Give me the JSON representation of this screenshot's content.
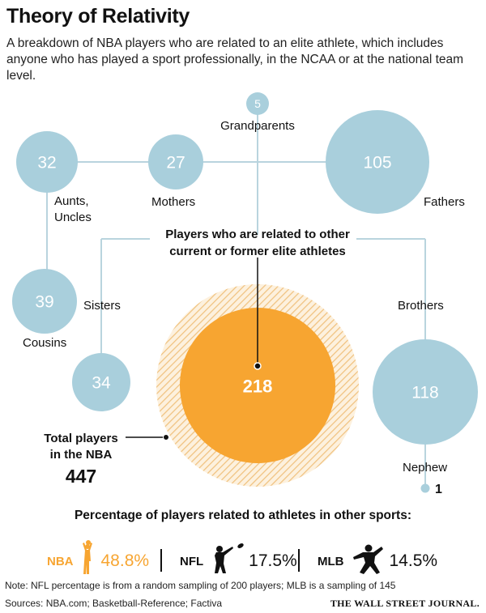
{
  "title": "Theory of Relativity",
  "subtitle": "A breakdown of NBA players who are related to an elite athlete, which includes anyone who has played a sport professionally, in the NCAA or at the national team level.",
  "chart_data": {
    "type": "bubble",
    "relations": [
      {
        "name": "Grandparents",
        "value": 5
      },
      {
        "name": "Aunts, Uncles",
        "value": 32
      },
      {
        "name": "Mothers",
        "value": 27
      },
      {
        "name": "Fathers",
        "value": 105
      },
      {
        "name": "Cousins",
        "value": 39
      },
      {
        "name": "Sisters",
        "value": 34
      },
      {
        "name": "Brothers",
        "value": 118
      },
      {
        "name": "Nephew",
        "value": 1
      }
    ],
    "related_label": "Players who are related to other current or former elite athletes",
    "related_value": 218,
    "total_label": "Total players in the NBA",
    "total_value": 447
  },
  "labels": {
    "grandparents": "Grandparents",
    "aunts_line1": "Aunts,",
    "aunts_line2": "Uncles",
    "mothers": "Mothers",
    "fathers": "Fathers",
    "cousins": "Cousins",
    "sisters": "Sisters",
    "brothers": "Brothers",
    "nephew": "Nephew",
    "callout_line1": "Players who are related to other",
    "callout_line2": "current or former elite athletes",
    "total_line1": "Total players",
    "total_line2": "in the NBA"
  },
  "sports_heading": "Percentage of players related to athletes in other sports:",
  "sports": [
    {
      "name": "NBA",
      "pct": "48.8%",
      "icon": "basketball-player-icon",
      "color": "#f5a623"
    },
    {
      "name": "NFL",
      "pct": "17.5%",
      "icon": "football-player-icon",
      "color": "#111111"
    },
    {
      "name": "MLB",
      "pct": "14.5%",
      "icon": "baseball-pitcher-icon",
      "color": "#111111"
    }
  ],
  "note": "Note: NFL percentage is from a random sampling of 200 players; MLB is a sampling of 145",
  "sources": "Sources: NBA.com; Basketball-Reference; Factiva",
  "credit": "THE WALL STREET JOURNAL.",
  "colors": {
    "bubble": "#a9cfdc",
    "orange": "#f7a531",
    "hatch": "#f3c98a",
    "line": "#b9d4de"
  }
}
